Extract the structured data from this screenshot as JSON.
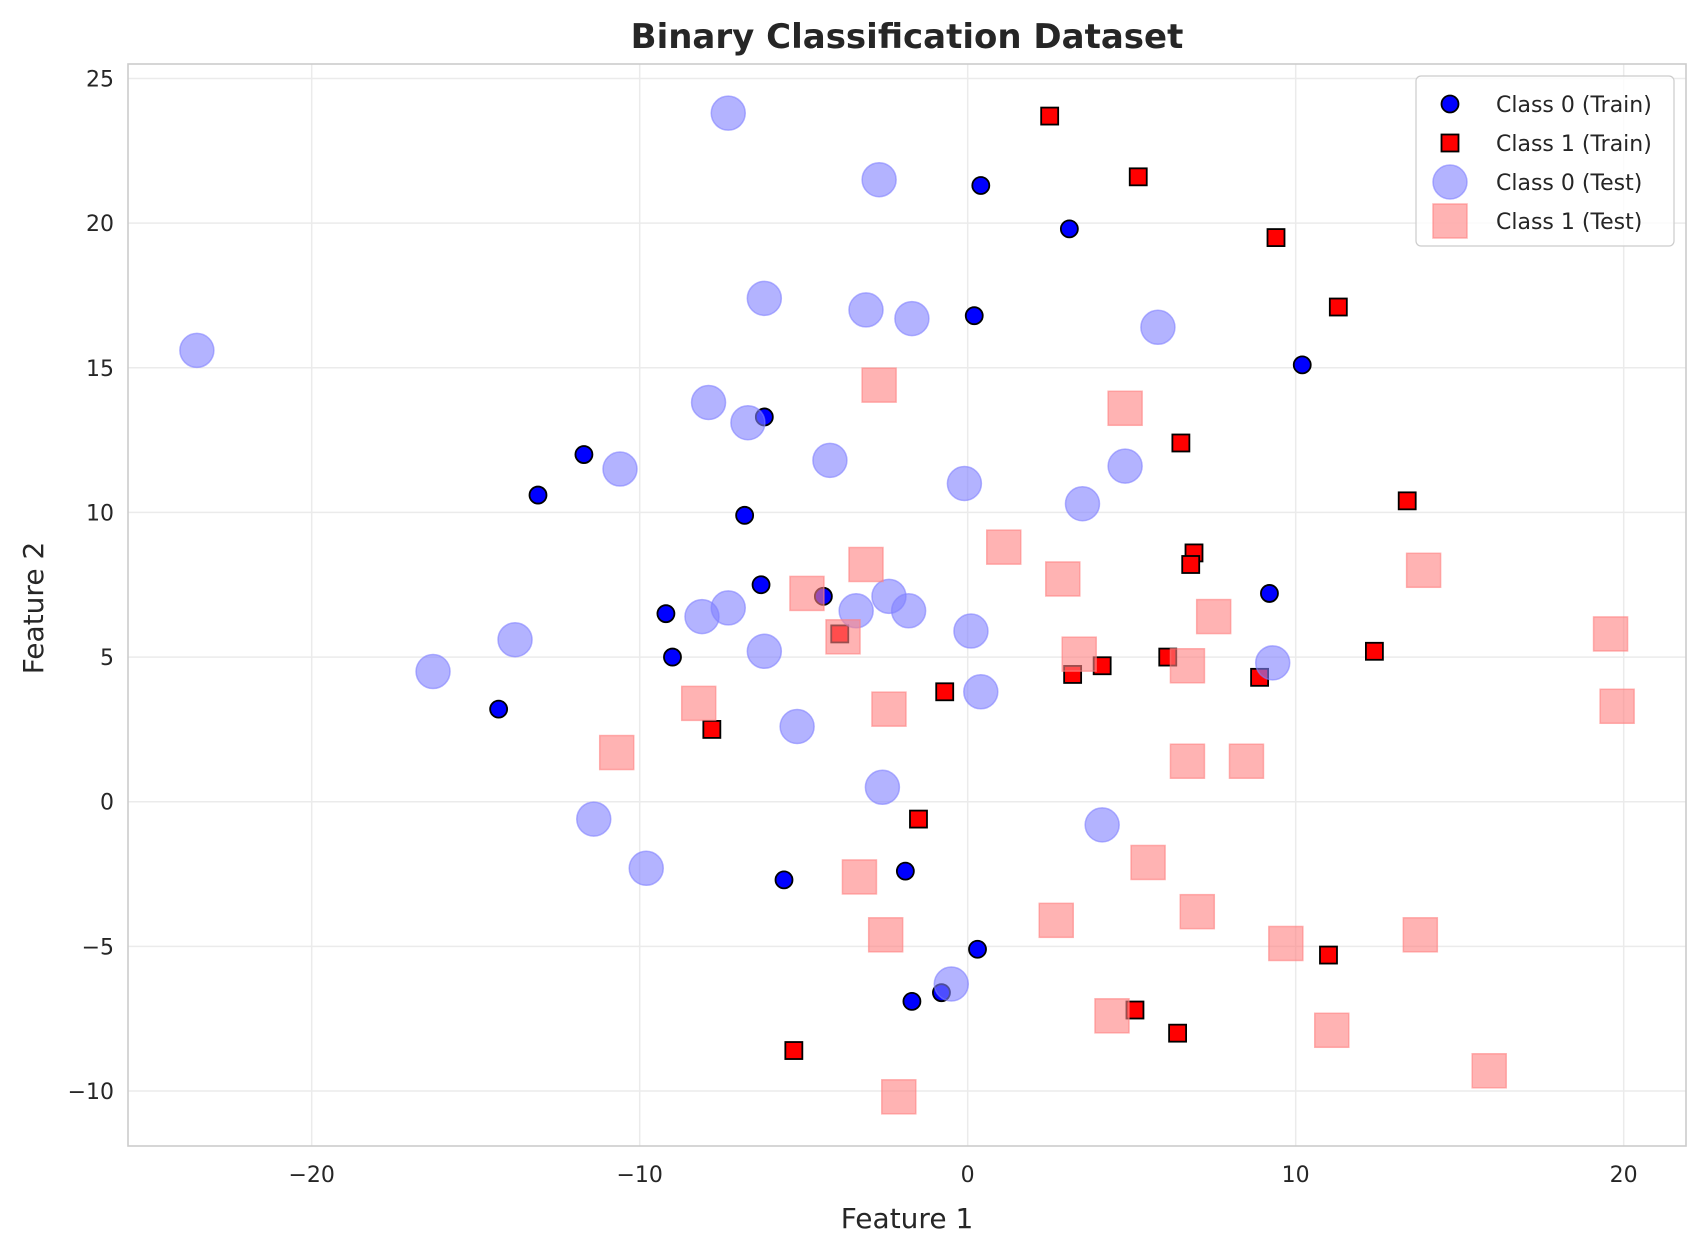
{
  "chart_data": {
    "type": "scatter",
    "title": "Binary Classification Dataset",
    "xlabel": "Feature 1",
    "ylabel": "Feature 2",
    "xlim": [
      -25.6,
      21.9
    ],
    "ylim": [
      -11.9,
      25.5
    ],
    "xticks": [
      -20,
      -10,
      0,
      10,
      20
    ],
    "yticks": [
      -10,
      -5,
      0,
      5,
      10,
      15,
      20,
      25
    ],
    "xtick_labels": [
      "−20",
      "−10",
      "0",
      "10",
      "20"
    ],
    "ytick_labels": [
      "−10",
      "−5",
      "0",
      "5",
      "10",
      "15",
      "20",
      "25"
    ],
    "grid": true,
    "legend_position": "top-right",
    "colors": {
      "class0_train": "#0000ff",
      "class1_train": "#ff0000",
      "class0_test": "#8080ff",
      "class1_test": "#ff8080",
      "edge": "#000000",
      "grid": "#ebebeb",
      "spine": "#cccccc"
    },
    "series": [
      {
        "name": "Class 0 (Train)",
        "marker": "circle",
        "points": [
          [
            0.4,
            21.3
          ],
          [
            3.1,
            19.8
          ],
          [
            0.2,
            16.8
          ],
          [
            10.2,
            15.1
          ],
          [
            -6.2,
            13.3
          ],
          [
            -11.7,
            12.0
          ],
          [
            -13.1,
            10.6
          ],
          [
            -6.8,
            9.9
          ],
          [
            -6.3,
            7.5
          ],
          [
            -4.4,
            7.1
          ],
          [
            -9.2,
            6.5
          ],
          [
            -9.0,
            5.0
          ],
          [
            -14.3,
            3.2
          ],
          [
            9.2,
            7.2
          ],
          [
            -5.6,
            -2.7
          ],
          [
            -1.9,
            -2.4
          ],
          [
            0.3,
            -5.1
          ],
          [
            -1.7,
            -6.9
          ],
          [
            -0.8,
            -6.6
          ]
        ]
      },
      {
        "name": "Class 1 (Train)",
        "marker": "square",
        "points": [
          [
            2.5,
            23.7
          ],
          [
            5.2,
            21.6
          ],
          [
            9.4,
            19.5
          ],
          [
            11.3,
            17.1
          ],
          [
            6.5,
            12.4
          ],
          [
            13.4,
            10.4
          ],
          [
            6.9,
            8.6
          ],
          [
            6.8,
            8.2
          ],
          [
            -3.9,
            5.8
          ],
          [
            4.1,
            4.7
          ],
          [
            3.2,
            4.4
          ],
          [
            -0.7,
            3.8
          ],
          [
            6.1,
            5.0
          ],
          [
            8.9,
            4.3
          ],
          [
            12.4,
            5.2
          ],
          [
            -7.8,
            2.5
          ],
          [
            -1.5,
            -0.6
          ],
          [
            11.0,
            -5.3
          ],
          [
            5.1,
            -7.2
          ],
          [
            6.4,
            -8.0
          ],
          [
            -5.3,
            -8.6
          ]
        ]
      },
      {
        "name": "Class 0 (Test)",
        "marker": "circle",
        "points": [
          [
            -7.3,
            23.8
          ],
          [
            -2.7,
            21.5
          ],
          [
            -6.2,
            17.4
          ],
          [
            -3.1,
            17.0
          ],
          [
            -1.7,
            16.7
          ],
          [
            5.8,
            16.4
          ],
          [
            -23.5,
            15.6
          ],
          [
            -7.9,
            13.8
          ],
          [
            -6.7,
            13.1
          ],
          [
            -4.2,
            11.8
          ],
          [
            -10.6,
            11.5
          ],
          [
            -0.1,
            11.0
          ],
          [
            4.8,
            11.6
          ],
          [
            3.5,
            10.3
          ],
          [
            -2.4,
            7.1
          ],
          [
            -3.4,
            6.6
          ],
          [
            -1.8,
            6.6
          ],
          [
            -7.3,
            6.7
          ],
          [
            -8.1,
            6.4
          ],
          [
            -13.8,
            5.6
          ],
          [
            0.1,
            5.9
          ],
          [
            -6.2,
            5.2
          ],
          [
            -16.3,
            4.5
          ],
          [
            0.4,
            3.8
          ],
          [
            9.3,
            4.8
          ],
          [
            -5.2,
            2.6
          ],
          [
            -2.6,
            0.5
          ],
          [
            -11.4,
            -0.6
          ],
          [
            4.1,
            -0.8
          ],
          [
            -9.8,
            -2.3
          ],
          [
            -0.5,
            -6.3
          ]
        ]
      },
      {
        "name": "Class 1 (Test)",
        "marker": "square",
        "points": [
          [
            -2.7,
            14.4
          ],
          [
            4.8,
            13.6
          ],
          [
            1.1,
            8.8
          ],
          [
            -3.1,
            8.2
          ],
          [
            2.9,
            7.7
          ],
          [
            13.9,
            8.0
          ],
          [
            -4.9,
            7.2
          ],
          [
            7.5,
            6.4
          ],
          [
            -3.8,
            5.7
          ],
          [
            3.4,
            5.1
          ],
          [
            6.7,
            4.7
          ],
          [
            19.6,
            5.8
          ],
          [
            -8.2,
            3.4
          ],
          [
            -2.4,
            3.2
          ],
          [
            19.8,
            3.3
          ],
          [
            -10.7,
            1.7
          ],
          [
            6.7,
            1.4
          ],
          [
            8.5,
            1.4
          ],
          [
            5.5,
            -2.1
          ],
          [
            -3.3,
            -2.6
          ],
          [
            7.0,
            -3.8
          ],
          [
            2.7,
            -4.1
          ],
          [
            -2.5,
            -4.6
          ],
          [
            9.7,
            -4.9
          ],
          [
            13.8,
            -4.6
          ],
          [
            4.4,
            -7.4
          ],
          [
            11.1,
            -7.9
          ],
          [
            -2.1,
            -10.2
          ],
          [
            15.9,
            -9.3
          ]
        ]
      }
    ]
  }
}
